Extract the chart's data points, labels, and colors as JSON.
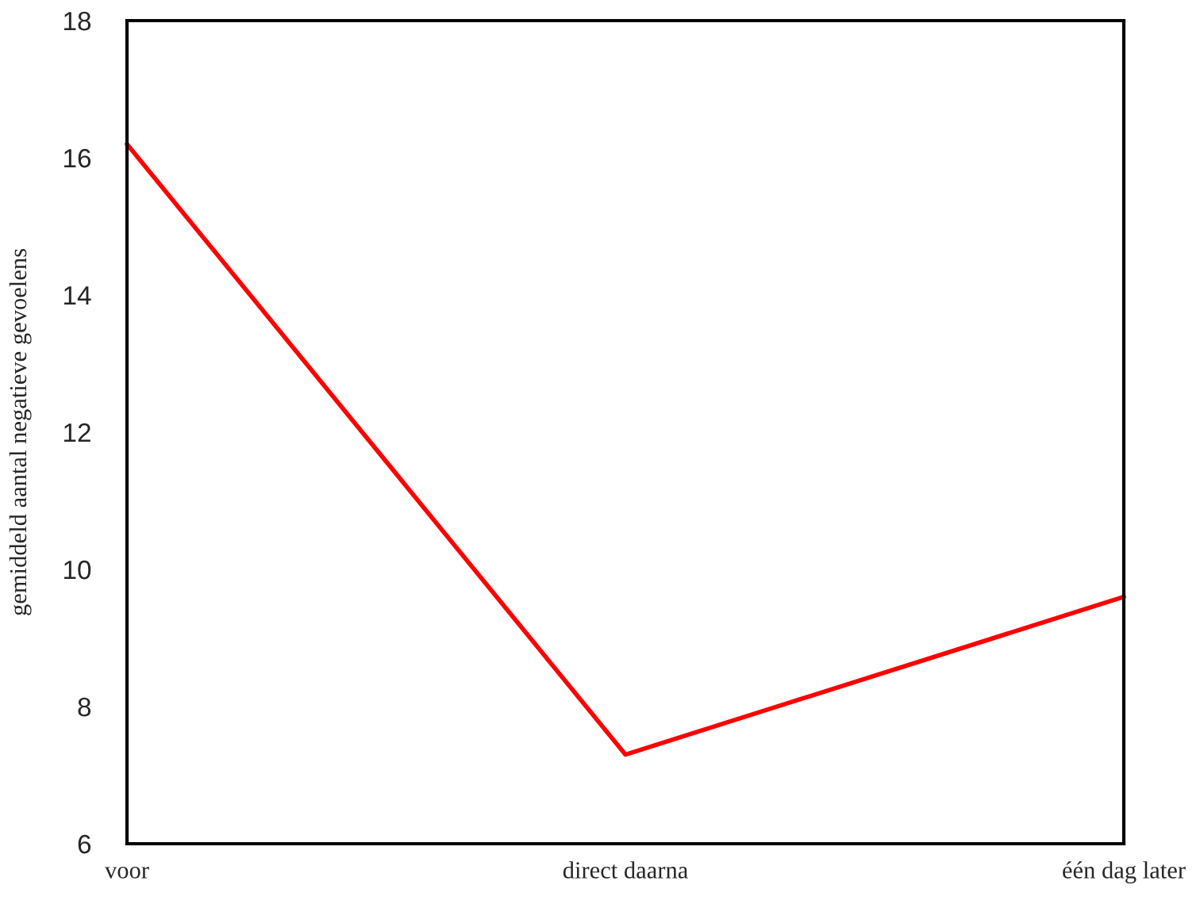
{
  "chart_data": {
    "type": "line",
    "ylabel": "gemiddeld aantal negatieve gevoelens",
    "categories": [
      "voor",
      "direct daarna",
      "één dag later"
    ],
    "series": [
      {
        "color": "#ff0000",
        "values": [
          16.2,
          7.3,
          9.6
        ]
      }
    ],
    "ylim": [
      6,
      18
    ],
    "yticks": [
      6,
      8,
      10,
      12,
      14,
      16,
      18
    ],
    "grid": false,
    "legend": false,
    "marker": "none",
    "line_style": "solid"
  }
}
